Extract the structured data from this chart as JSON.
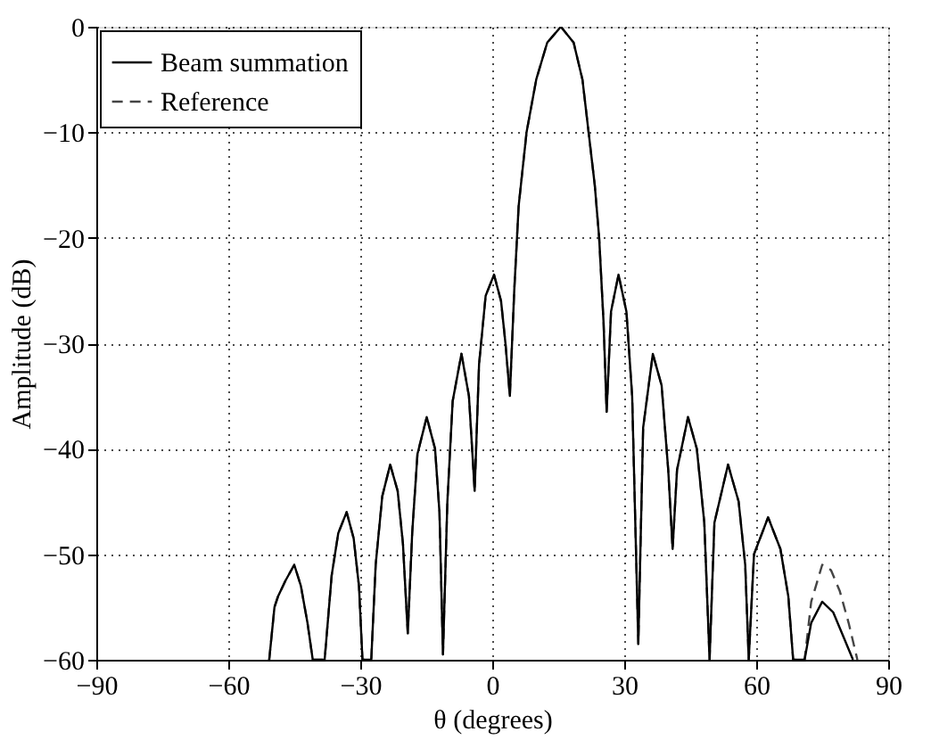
{
  "chart_data": {
    "type": "line",
    "xlabel": "θ (degrees)",
    "ylabel": "Amplitude (dB)",
    "xlim": [
      -90,
      90
    ],
    "xticks": [
      -90,
      -60,
      -30,
      0,
      30,
      60,
      90
    ],
    "ylim": [
      -60,
      0
    ],
    "yticks": [
      -60,
      -50,
      -40,
      -30,
      -20,
      -10,
      0
    ],
    "grid": true,
    "legend": "top left",
    "marker": "none",
    "series": [
      {
        "name": "Beam summation",
        "color": "#000000",
        "line_style": "solid",
        "x": [
          -50.7,
          -49.5,
          -48.7,
          -47,
          -45,
          -43.5,
          -42,
          -40.8,
          -38.1,
          -36.5,
          -35,
          -33.1,
          -31.5,
          -30.3,
          -29.5,
          -27.5,
          -26.5,
          -25,
          -23.2,
          -21.5,
          -20.3,
          -19.2,
          -18.2,
          -17,
          -14.9,
          -13,
          -12,
          -11.2,
          -10.2,
          -9,
          -7,
          -5.3,
          -4,
          -3,
          -1.5,
          0.4,
          2,
          3,
          4,
          5,
          6,
          7.8,
          10,
          12.5,
          15.6,
          18.5,
          20.5,
          21.9,
          23.3,
          24.3,
          25.3,
          26,
          27,
          28.7,
          30.5,
          31.8,
          33.2,
          34.3,
          36.5,
          38.5,
          40,
          41,
          42,
          44.5,
          46.5,
          48.2,
          49.4,
          50.5,
          53.6,
          56,
          57.5,
          58.3,
          59.5,
          62.7,
          65.5,
          67.3,
          68.4,
          71,
          72.5,
          75,
          77.5,
          80,
          82
        ],
        "values": [
          -60,
          -55,
          -54,
          -52.5,
          -51,
          -53,
          -56.5,
          -60,
          -60,
          -52,
          -48,
          -46,
          -48.5,
          -53,
          -60,
          -60,
          -51,
          -44.5,
          -41.5,
          -44,
          -49,
          -57.5,
          -48,
          -40.5,
          -37,
          -40,
          -46,
          -59.5,
          -45,
          -35.5,
          -31,
          -35,
          -44,
          -32,
          -25.5,
          -23.5,
          -26,
          -30,
          -35,
          -25,
          -17,
          -10,
          -5,
          -1.5,
          0,
          -1.5,
          -5,
          -10,
          -15,
          -20,
          -28,
          -36.5,
          -27,
          -23.5,
          -27,
          -35,
          -58.5,
          -38,
          -31,
          -34,
          -42,
          -49.5,
          -42,
          -37,
          -40,
          -47,
          -60,
          -47,
          -41.5,
          -45,
          -51,
          -60,
          -50,
          -46.5,
          -49.5,
          -54,
          -60,
          -60,
          -56.5,
          -54.5,
          -55.5,
          -58,
          -60
        ]
      },
      {
        "name": "Reference",
        "color": "#444444",
        "line_style": "dashed",
        "x": [
          -50.7,
          -49.5,
          -48.7,
          -47,
          -45,
          -43.5,
          -42,
          -40.8,
          -38.1,
          -36.5,
          -35,
          -33.1,
          -31.5,
          -30.3,
          -29.5,
          -27.5,
          -26.5,
          -25,
          -23.2,
          -21.5,
          -20.3,
          -19.2,
          -18.2,
          -17,
          -14.9,
          -13,
          -12,
          -11.2,
          -10.2,
          -9,
          -7,
          -5.3,
          -4,
          -3,
          -1.5,
          0.4,
          2,
          3,
          4,
          5,
          6,
          7.8,
          10,
          12.5,
          15.6,
          18.5,
          20.5,
          21.9,
          23.3,
          24.3,
          25.3,
          26,
          27,
          28.7,
          30.5,
          31.8,
          33.2,
          34.3,
          36.5,
          38.5,
          40,
          41,
          42,
          44.5,
          46.5,
          48.2,
          49.4,
          50.5,
          53.6,
          56,
          57.5,
          58.3,
          59.5,
          62.7,
          65.5,
          67.3,
          68.4,
          71,
          72.5,
          75,
          77,
          79,
          81,
          83
        ],
        "values": [
          -60,
          -55,
          -54,
          -52.5,
          -51,
          -53,
          -56.5,
          -60,
          -60,
          -52,
          -48,
          -46,
          -48.5,
          -53,
          -60,
          -60,
          -51,
          -44.5,
          -41.5,
          -44,
          -49,
          -57.5,
          -48,
          -40.5,
          -37,
          -40,
          -46,
          -59.5,
          -45,
          -35.5,
          -31,
          -35,
          -44,
          -32,
          -25.5,
          -23.5,
          -26,
          -30,
          -35,
          -25,
          -17,
          -10,
          -5,
          -1.5,
          0,
          -1.5,
          -5,
          -10,
          -15,
          -20,
          -28,
          -36.5,
          -27,
          -23.5,
          -27,
          -35,
          -58.5,
          -38,
          -31,
          -34,
          -42,
          -49.5,
          -42,
          -37,
          -40,
          -47,
          -60,
          -47,
          -41.5,
          -45,
          -51,
          -60,
          -50,
          -46.5,
          -49.5,
          -54,
          -60,
          -60,
          -54.5,
          -51,
          -51.5,
          -53.5,
          -56.5,
          -60
        ]
      }
    ]
  }
}
